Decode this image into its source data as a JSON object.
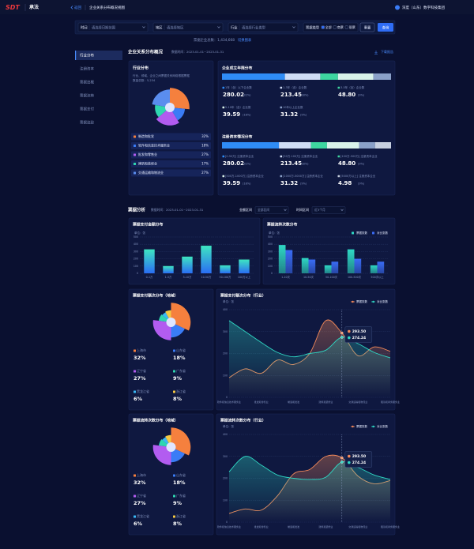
{
  "header": {
    "logo": "SDT",
    "app": "承法",
    "back": "返回",
    "page": "企业关系分布概况视图",
    "company": "深度（山东）数字科技集团"
  },
  "filters": {
    "fields": [
      {
        "label": "时间",
        "placeholder": "请选择日期范围"
      },
      {
        "label": "地区",
        "placeholder": "请选择地区"
      },
      {
        "label": "行业",
        "placeholder": "请选择行业类型"
      }
    ],
    "type": {
      "label": "票据类型",
      "options": [
        "全部",
        "商票",
        "银票"
      ]
    },
    "reset": "重置",
    "query": "查询"
  },
  "summary": {
    "text": "票据企业总数：1,434,668",
    "link": "切换图表"
  },
  "sidebar": {
    "items": [
      "行业分布",
      "注册资本",
      "票据追概",
      "票据流转",
      "票据支付",
      "票据追踪"
    ],
    "active": 0
  },
  "overview": {
    "title": "企业关系分布概况",
    "time": "数据时间：2023-01-01~2023-01-31",
    "download": "下载报告",
    "industry": {
      "title": "行业分布",
      "desc": [
        "行业、领域、企业之间票据关系网络根据票据",
        "数量总数：5,234"
      ],
      "chart": {
        "type": "pie",
        "categories": [
          "制造和批发",
          "软件和信息技术服务业",
          "批发和零售业",
          "建筑和装修业",
          "交通运输和物流业"
        ],
        "values": [
          32,
          18,
          27,
          17,
          27
        ],
        "value_labels": [
          "32%",
          "18%",
          "27%",
          "17%",
          "27%"
        ],
        "colors": [
          "#f5803e",
          "#3a7cf6",
          "#b25cf0",
          "#2fd6b0",
          "#5a8dee"
        ]
      }
    },
    "groups": [
      {
        "title": "企业成立年限分布",
        "colors": [
          "#2f8cf6",
          "#cfdcf5",
          "#3ed6a0",
          "#d9f2ea",
          "#8aa0c8"
        ],
        "stats": [
          {
            "label": "1年（含）以下企业数",
            "value": "280.02",
            "pct": 32,
            "pct_label": "(32%)"
          },
          {
            "label": "1-3年（含）企业数",
            "value": "213.45",
            "pct": 18,
            "pct_label": "(18%)"
          },
          {
            "label": "3-5年（含）企业数",
            "value": "48.80",
            "pct": 9,
            "pct_label": "(9%)"
          },
          {
            "label": "5-10年（含）企业数",
            "value": "39.59",
            "pct": 18,
            "pct_label": "(18%)"
          },
          {
            "label": "10年以上企业数",
            "value": "31.32",
            "pct": 9,
            "pct_label": "(9%)"
          }
        ]
      },
      {
        "title": "注册资本情况分布",
        "colors": [
          "#2f8cf6",
          "#cfdcf5",
          "#3ed6a0",
          "#d9f2ea",
          "#8aa0c8",
          "#c8d0e0"
        ],
        "stats": [
          {
            "label": "[0-50万] 注册资本企业",
            "value": "280.02",
            "pct": 32,
            "pct_label": "(32%)"
          },
          {
            "label": "[50万-100万] 注册资本企业",
            "value": "213.45",
            "pct": 18,
            "pct_label": "(18%)"
          },
          {
            "label": "[100万-500万] 注册资本企业",
            "value": "48.80",
            "pct": 9,
            "pct_label": "(9%)"
          },
          {
            "label": "[500万-1000万] 注册资本企业",
            "value": "39.59",
            "pct": 18,
            "pct_label": "(18%)"
          },
          {
            "label": "[1000万-5000万] 注册资本企业",
            "value": "31.32",
            "pct": 9,
            "pct_label": "(9%)"
          },
          {
            "label": "[5000万以上] 注册资本企业",
            "value": "4.98",
            "pct": 9,
            "pct_label": "(9%)"
          }
        ]
      }
    ]
  },
  "bills": {
    "title": "票据分析",
    "time": "数据时间：2023-01-01~2023-01-31",
    "selects": [
      {
        "label": "金额区间",
        "value": "全部区间"
      },
      {
        "label": "时间区间",
        "value": "近3个月"
      }
    ],
    "amount": {
      "type": "bar",
      "title": "票据支付金额分布",
      "unit": "单位：张",
      "categories": [
        "0-1万",
        "1-5万",
        "5-10万",
        "10-50万",
        "50-100万",
        "100万以上"
      ],
      "values": [
        330,
        100,
        230,
        380,
        110,
        190
      ],
      "gradient": [
        "#3ee6c1",
        "#2a6df4"
      ],
      "ylim": [
        0,
        500
      ],
      "yticks": [
        0,
        100,
        200,
        300,
        400,
        500
      ]
    },
    "count": {
      "type": "bar",
      "title": "票据流转次数分布",
      "unit": "单位：张",
      "categories": [
        "1-10次",
        "10-50次",
        "50-100次",
        "100-500次",
        "500次以上"
      ],
      "series": [
        {
          "name": "票据张数",
          "color": "#2fd8c4",
          "values": [
            390,
            210,
            110,
            330,
            110
          ]
        },
        {
          "name": "对比张数",
          "color": "#3a6cf6",
          "values": [
            320,
            190,
            160,
            200,
            160
          ]
        }
      ],
      "ylim": [
        0,
        500
      ],
      "yticks": [
        0,
        100,
        200,
        300,
        400,
        500
      ],
      "legend": "top-right"
    },
    "panels": [
      {
        "region": {
          "type": "pie",
          "title": "票据支付额次分布（地域）",
          "categories": [
            "上海市",
            "山东省",
            "辽宁省",
            "广东省",
            "黑龙江省",
            "浙江省"
          ],
          "values": [
            32,
            18,
            27,
            9,
            6,
            8
          ],
          "value_labels": [
            "32%",
            "18%",
            "27%",
            "9%",
            "6%",
            "8%"
          ],
          "colors": [
            "#f5803e",
            "#3a7cf6",
            "#b25cf0",
            "#2fd6b0",
            "#3ab8f5",
            "#f5c842"
          ]
        },
        "industry": {
          "type": "line",
          "title": "票据支付额次分布（行业）",
          "unit": "单位：张",
          "categories": [
            "软件和信息技术服务业",
            null,
            "批发和零售业",
            null,
            "制造和批发",
            null,
            "建筑和装修业",
            null,
            "交通运输和物流业",
            null,
            "租赁和商务服务业"
          ],
          "series": [
            {
              "name": "票据张数",
              "color": "#f58a5a",
              "values": [
                90,
                130,
                110,
                170,
                150,
                200,
                350,
                293.5,
                190,
                230,
                210
              ]
            },
            {
              "name": "对比张数",
              "color": "#2fd8c4",
              "values": [
                350,
                300,
                250,
                205,
                185,
                200,
                215,
                274.24,
                245,
                205,
                180
              ]
            }
          ],
          "ylim": [
            0,
            400
          ],
          "yticks": [
            0,
            100,
            200,
            300,
            400
          ],
          "tooltip": [
            "293.50",
            "274.24"
          ],
          "legend": "top-right"
        }
      },
      {
        "region": {
          "type": "pie",
          "title": "票据流转次数分布（地域）",
          "categories": [
            "上海市",
            "山东省",
            "辽宁省",
            "广东省",
            "黑龙江省",
            "浙江省"
          ],
          "values": [
            32,
            18,
            27,
            9,
            6,
            8
          ],
          "value_labels": [
            "32%",
            "18%",
            "27%",
            "9%",
            "6%",
            "8%"
          ],
          "colors": [
            "#f5803e",
            "#3a7cf6",
            "#b25cf0",
            "#2fd6b0",
            "#3ab8f5",
            "#f5c842"
          ]
        },
        "industry": {
          "type": "line",
          "title": "票据流转次数分布（行业）",
          "unit": "单位：张",
          "categories": [
            "软件和信息技术服务业",
            null,
            "批发和零售业",
            null,
            "制造和批发",
            null,
            "建筑和装修业",
            null,
            "交通运输和物流业",
            null,
            "租赁和商务服务业"
          ],
          "series": [
            {
              "name": "票据张数",
              "color": "#f58a5a",
              "values": [
                40,
                60,
                55,
                120,
                220,
                240,
                300,
                293.5,
                210,
                175,
                190
              ]
            },
            {
              "name": "对比张数",
              "color": "#2fd8c4",
              "values": [
                230,
                300,
                260,
                215,
                200,
                195,
                205,
                274.24,
                250,
                215,
                195
              ]
            }
          ],
          "ylim": [
            0,
            400
          ],
          "yticks": [
            0,
            100,
            200,
            300,
            400
          ],
          "tooltip": [
            "293.50",
            "274.24"
          ],
          "legend": "top-right"
        }
      }
    ]
  }
}
